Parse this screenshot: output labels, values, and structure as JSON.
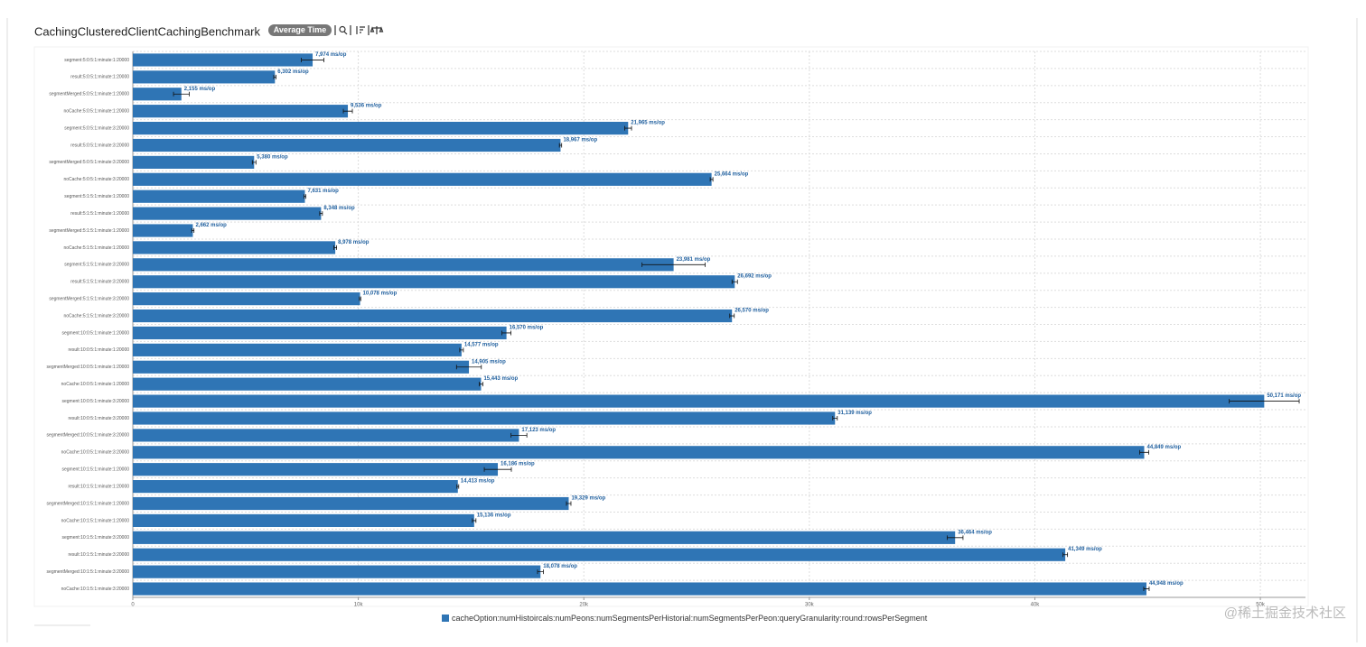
{
  "header": {
    "badge": "Average Time"
  },
  "watermark": "@稀土掘金技术社区",
  "chart_data": {
    "type": "bar",
    "orientation": "horizontal",
    "title": "CachingClusteredClientCachingBenchmark",
    "categories": [
      "segment:5:0:5:1:minute:1:20000",
      "result:5:0:5:1:minute:1:20000",
      "segmentMerged:5:0:5:1:minute:1:20000",
      "noCache:5:0:5:1:minute:1:20000",
      "segment:5:0:5:1:minute:3:20000",
      "result:5:0:5:1:minute:3:20000",
      "segmentMerged:5:0:5:1:minute:3:20000",
      "noCache:5:0:5:1:minute:3:20000",
      "segment:5:1:5:1:minute:1:20000",
      "result:5:1:5:1:minute:1:20000",
      "segmentMerged:5:1:5:1:minute:1:20000",
      "noCache:5:1:5:1:minute:1:20000",
      "segment:5:1:5:1:minute:3:20000",
      "result:5:1:5:1:minute:3:20000",
      "segmentMerged:5:1:5:1:minute:3:20000",
      "noCache:5:1:5:1:minute:3:20000",
      "segment:10:0:5:1:minute:1:20000",
      "result:10:0:5:1:minute:1:20000",
      "segmentMerged:10:0:5:1:minute:1:20000",
      "noCache:10:0:5:1:minute:1:20000",
      "segment:10:0:5:1:minute:3:20000",
      "result:10:0:5:1:minute:3:20000",
      "segmentMerged:10:0:5:1:minute:3:20000",
      "noCache:10:0:5:1:minute:3:20000",
      "segment:10:1:5:1:minute:1:20000",
      "result:10:1:5:1:minute:1:20000",
      "segmentMerged:10:1:5:1:minute:1:20000",
      "noCache:10:1:5:1:minute:1:20000",
      "segment:10:1:5:1:minute:3:20000",
      "result:10:1:5:1:minute:3:20000",
      "segmentMerged:10:1:5:1:minute:3:20000",
      "noCache:10:1:5:1:minute:3:20000"
    ],
    "series": [
      {
        "name": "cacheOption:numHistoircals:numPeons:numSegmentsPerHistorial:numSegmentsPerPeon:queryGranularity:round:rowsPerSegment",
        "color": "#2f75b5",
        "values": [
          7974,
          6302,
          2155,
          9536,
          21965,
          18967,
          5380,
          25664,
          7631,
          8348,
          2662,
          8978,
          23981,
          26692,
          10078,
          26570,
          16570,
          14577,
          14905,
          15443,
          50171,
          31139,
          17123,
          44849,
          16186,
          14413,
          19329,
          15136,
          36464,
          41349,
          18078,
          44948
        ],
        "errors": [
          500,
          50,
          350,
          200,
          150,
          50,
          80,
          60,
          40,
          60,
          50,
          60,
          1400,
          120,
          30,
          100,
          200,
          80,
          550,
          80,
          1550,
          100,
          350,
          200,
          600,
          40,
          100,
          80,
          350,
          100,
          130,
          120
        ],
        "value_labels": [
          "7,974 ms/op",
          "6,302 ms/op",
          "2,155 ms/op",
          "9,536 ms/op",
          "21,965 ms/op",
          "18,967 ms/op",
          "5,380 ms/op",
          "25,664 ms/op",
          "7,631 ms/op",
          "8,348 ms/op",
          "2,662 ms/op",
          "8,978 ms/op",
          "23,981 ms/op",
          "26,692 ms/op",
          "10,078 ms/op",
          "26,570 ms/op",
          "16,570 ms/op",
          "14,577 ms/op",
          "14,905 ms/op",
          "15,443 ms/op",
          "50,171 ms/op",
          "31,139 ms/op",
          "17,123 ms/op",
          "44,849 ms/op",
          "16,186 ms/op",
          "14,413 ms/op",
          "19,329 ms/op",
          "15,136 ms/op",
          "36,464 ms/op",
          "41,349 ms/op",
          "18,078 ms/op",
          "44,948 ms/op"
        ]
      }
    ],
    "xlim": [
      0,
      52000
    ],
    "xticks": [
      0,
      {
        "value": 10000,
        "label": "10k"
      },
      {
        "value": 20000,
        "label": "20k"
      },
      {
        "value": 30000,
        "label": "30k"
      },
      {
        "value": 40000,
        "label": "40k"
      },
      {
        "value": 50000,
        "label": "50k"
      }
    ],
    "grid": true
  }
}
